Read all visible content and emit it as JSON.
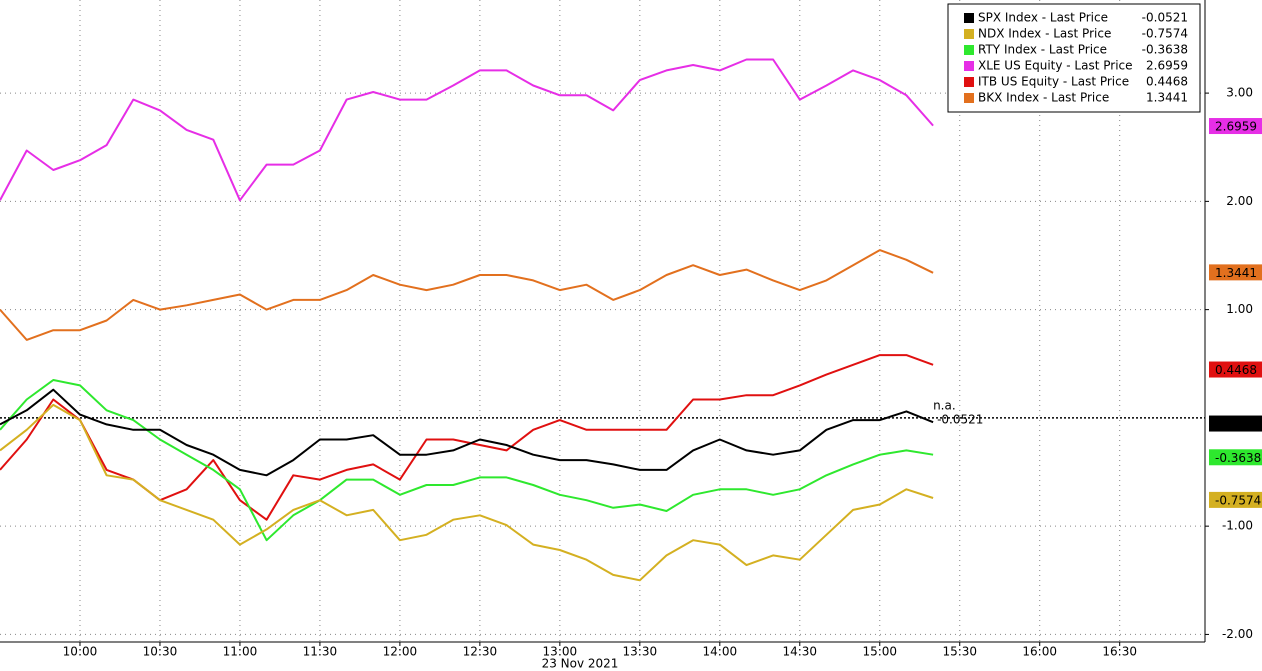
{
  "chart_data": {
    "type": "line",
    "x_label": "23 Nov 2021",
    "x": [
      570,
      580,
      590,
      600,
      610,
      620,
      630,
      640,
      650,
      660,
      670,
      680,
      690,
      700,
      710,
      720,
      730,
      740,
      750,
      760,
      770,
      780,
      790,
      800,
      810,
      820,
      830,
      840,
      850,
      860,
      870,
      880,
      890,
      900,
      910,
      920
    ],
    "xlim": [
      570,
      1022
    ],
    "xticks": [
      {
        "value": 600,
        "label": "10:00"
      },
      {
        "value": 630,
        "label": "10:30"
      },
      {
        "value": 660,
        "label": "11:00"
      },
      {
        "value": 690,
        "label": "11:30"
      },
      {
        "value": 720,
        "label": "12:00"
      },
      {
        "value": 750,
        "label": "12:30"
      },
      {
        "value": 780,
        "label": "13:00"
      },
      {
        "value": 810,
        "label": "13:30"
      },
      {
        "value": 840,
        "label": "14:00"
      },
      {
        "value": 870,
        "label": "14:30"
      },
      {
        "value": 900,
        "label": "15:00"
      },
      {
        "value": 930,
        "label": "15:30"
      },
      {
        "value": 960,
        "label": "16:00"
      },
      {
        "value": 990,
        "label": "16:30"
      }
    ],
    "ylim": [
      -2.07,
      3.86
    ],
    "yticks": [
      {
        "value": -2,
        "label": "-2.00"
      },
      {
        "value": -1,
        "label": "-1.00"
      },
      {
        "value": 1,
        "label": "1.00"
      },
      {
        "value": 2,
        "label": "2.00"
      },
      {
        "value": 3,
        "label": "3.00"
      }
    ],
    "grid": true,
    "legend": "top-right",
    "end_note": "n.a.",
    "series": [
      {
        "name": "SPX Index - Last Price",
        "color": "#000000",
        "last": -0.0521,
        "values": [
          -0.06,
          0.07,
          0.26,
          0.03,
          -0.06,
          -0.11,
          -0.11,
          -0.25,
          -0.34,
          -0.48,
          -0.53,
          -0.39,
          -0.2,
          -0.2,
          -0.16,
          -0.34,
          -0.34,
          -0.3,
          -0.2,
          -0.25,
          -0.34,
          -0.39,
          -0.39,
          -0.43,
          -0.48,
          -0.48,
          -0.3,
          -0.2,
          -0.3,
          -0.34,
          -0.3,
          -0.11,
          -0.02,
          -0.02,
          0.06,
          -0.04
        ]
      },
      {
        "name": "NDX Index - Last Price",
        "color": "#d4b021",
        "last": -0.7574,
        "values": [
          -0.3,
          -0.11,
          0.12,
          -0.02,
          -0.53,
          -0.57,
          -0.76,
          -0.85,
          -0.94,
          -1.17,
          -1.03,
          -0.85,
          -0.76,
          -0.9,
          -0.85,
          -1.13,
          -1.08,
          -0.94,
          -0.9,
          -0.99,
          -1.17,
          -1.22,
          -1.31,
          -1.45,
          -1.5,
          -1.27,
          -1.13,
          -1.17,
          -1.36,
          -1.27,
          -1.31,
          -1.08,
          -0.85,
          -0.8,
          -0.66,
          -0.74
        ]
      },
      {
        "name": "RTY Index - Last Price",
        "color": "#2ee82e",
        "last": -0.3638,
        "values": [
          -0.11,
          0.17,
          0.35,
          0.3,
          0.07,
          -0.02,
          -0.2,
          -0.34,
          -0.48,
          -0.66,
          -1.13,
          -0.9,
          -0.76,
          -0.57,
          -0.57,
          -0.71,
          -0.62,
          -0.62,
          -0.55,
          -0.55,
          -0.62,
          -0.71,
          -0.76,
          -0.83,
          -0.8,
          -0.86,
          -0.71,
          -0.66,
          -0.66,
          -0.71,
          -0.66,
          -0.53,
          -0.43,
          -0.34,
          -0.3,
          -0.34
        ]
      },
      {
        "name": "XLE US Equity - Last Price",
        "color": "#e62ee6",
        "last": 2.6959,
        "values": [
          2.01,
          2.47,
          2.29,
          2.38,
          2.52,
          2.94,
          2.84,
          2.66,
          2.57,
          2.01,
          2.34,
          2.34,
          2.47,
          2.94,
          3.01,
          2.94,
          2.94,
          3.07,
          3.21,
          3.21,
          3.07,
          2.98,
          2.98,
          2.84,
          3.12,
          3.21,
          3.26,
          3.21,
          3.31,
          3.31,
          2.94,
          3.07,
          3.21,
          3.12,
          2.98,
          2.7
        ]
      },
      {
        "name": "ITB US Equity - Last Price",
        "color": "#e01010",
        "last": 0.4468,
        "values": [
          -0.48,
          -0.2,
          0.17,
          -0.02,
          -0.48,
          -0.57,
          -0.76,
          -0.66,
          -0.39,
          -0.76,
          -0.94,
          -0.53,
          -0.57,
          -0.48,
          -0.43,
          -0.57,
          -0.2,
          -0.2,
          -0.25,
          -0.3,
          -0.11,
          -0.02,
          -0.11,
          -0.11,
          -0.11,
          -0.11,
          0.17,
          0.17,
          0.21,
          0.21,
          0.3,
          0.4,
          0.49,
          0.58,
          0.58,
          0.49
        ]
      },
      {
        "name": "BKX Index - Last Price",
        "color": "#e2701e",
        "last": 1.3441,
        "values": [
          1.0,
          0.72,
          0.81,
          0.81,
          0.9,
          1.09,
          1.0,
          1.04,
          1.09,
          1.14,
          1.0,
          1.09,
          1.09,
          1.18,
          1.32,
          1.23,
          1.18,
          1.23,
          1.32,
          1.32,
          1.27,
          1.18,
          1.23,
          1.09,
          1.18,
          1.32,
          1.41,
          1.32,
          1.37,
          1.27,
          1.18,
          1.27,
          1.41,
          1.55,
          1.46,
          1.34
        ]
      }
    ]
  }
}
